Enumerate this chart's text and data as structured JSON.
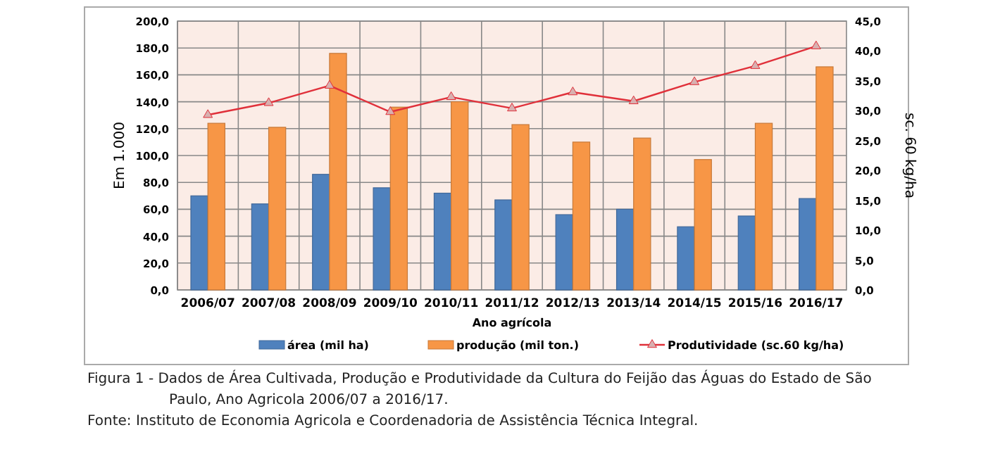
{
  "chart_data": {
    "type": "bar",
    "xlabel": "Ano agrícola",
    "ylabel": "Em 1.000",
    "y2label": "sc. 60 kg/ha",
    "categories": [
      "2006/07",
      "2007/08",
      "2008/09",
      "2009/10",
      "2010/11",
      "2011/12",
      "2012/13",
      "2013/14",
      "2014/15",
      "2015/16",
      "2016/17"
    ],
    "series": [
      {
        "name": "área (mil ha)",
        "color": "#4f81bd",
        "values": [
          70,
          64,
          86,
          76,
          72,
          67,
          56,
          60,
          47,
          55,
          68
        ]
      },
      {
        "name": "produção (mil ton.)",
        "color": "#f79646",
        "values": [
          124,
          121,
          176,
          136,
          140,
          123,
          110,
          113,
          97,
          124,
          166
        ]
      },
      {
        "name": "Produtividade (sc.60 kg/ha)",
        "type": "line",
        "axis": "y2",
        "color": "#e0303a",
        "marker": "triangle",
        "values": [
          29.3,
          31.3,
          34.2,
          29.8,
          32.3,
          30.4,
          33.1,
          31.6,
          34.8,
          37.5,
          40.8
        ]
      }
    ],
    "ylim": [
      0,
      200
    ],
    "yticks": [
      {
        "value": 0,
        "label": "0,0"
      },
      {
        "value": 20,
        "label": "20,0"
      },
      {
        "value": 40,
        "label": "40,0"
      },
      {
        "value": 60,
        "label": "60,0"
      },
      {
        "value": 80,
        "label": "80,0"
      },
      {
        "value": 100,
        "label": "100,0"
      },
      {
        "value": 120,
        "label": "120,0"
      },
      {
        "value": 140,
        "label": "140,0"
      },
      {
        "value": 160,
        "label": "160,0"
      },
      {
        "value": 180,
        "label": "180,0"
      },
      {
        "value": 200,
        "label": "200,0"
      }
    ],
    "y2lim": [
      0,
      45
    ],
    "y2ticks": [
      {
        "value": 0,
        "label": "0,0"
      },
      {
        "value": 5,
        "label": "5,0"
      },
      {
        "value": 10,
        "label": "10,0"
      },
      {
        "value": 15,
        "label": "15,0"
      },
      {
        "value": 20,
        "label": "20,0"
      },
      {
        "value": 25,
        "label": "25,0"
      },
      {
        "value": 30,
        "label": "30,0"
      },
      {
        "value": 35,
        "label": "35,0"
      },
      {
        "value": 40,
        "label": "40,0"
      },
      {
        "value": 45,
        "label": "45,0"
      }
    ],
    "grid": true,
    "legend": "bottom",
    "annotations": [
      "Figura 1 - Dados de Área Cultivada, Produção e Produtividade da Cultura do Feijão das Águas do Estado de São Paulo, Ano Agricola 2006/07 a 2016/17.",
      "Fonte: Instituto de Economia Agricola e Coordenadoria de Assistência Técnica Integral."
    ]
  }
}
